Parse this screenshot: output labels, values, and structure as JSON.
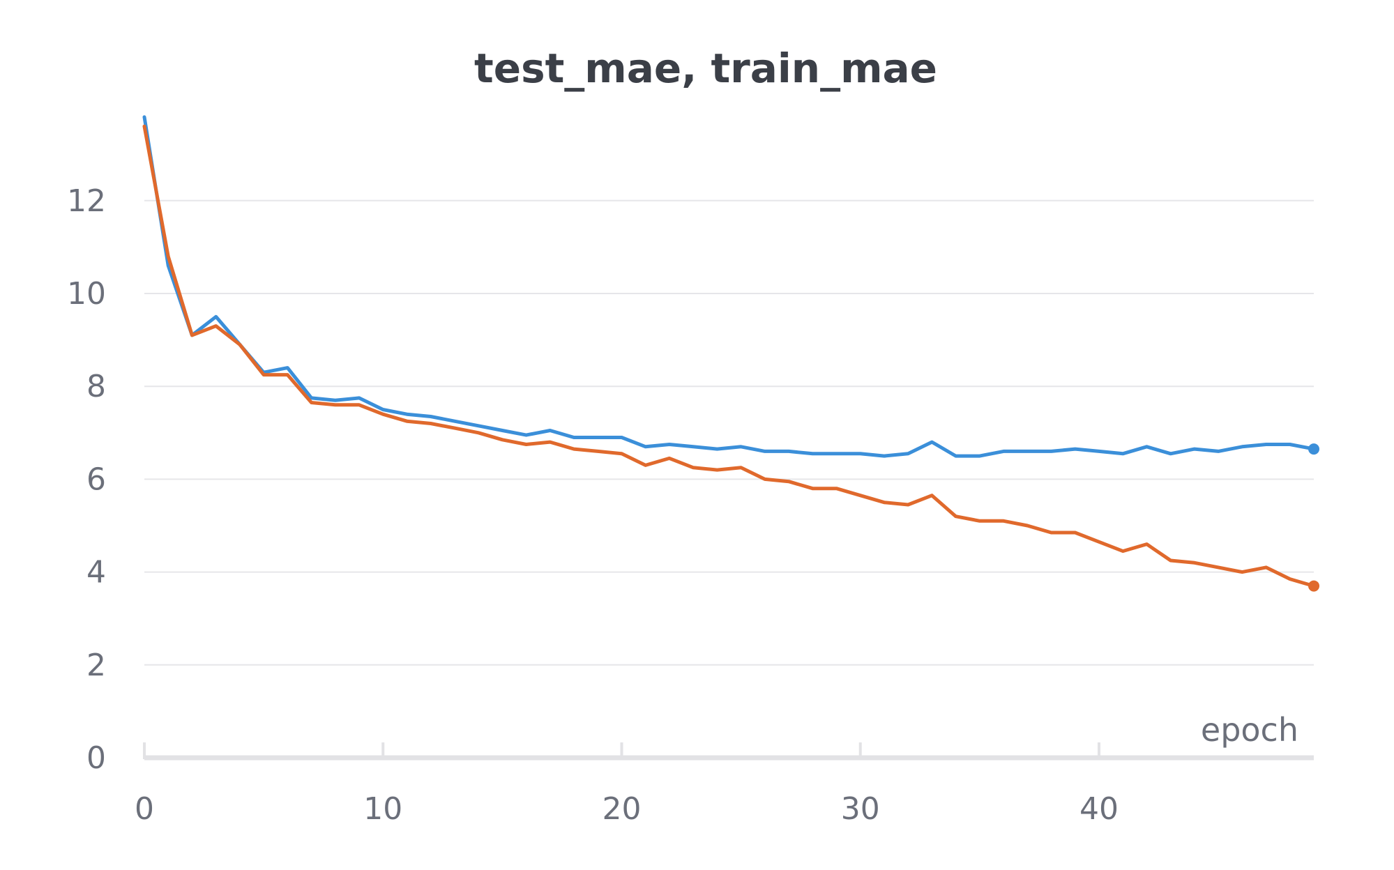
{
  "chart_data": {
    "type": "line",
    "title": "test_mae, train_mae",
    "xlabel": "epoch",
    "ylabel": "",
    "xlim": [
      0,
      49
    ],
    "ylim": [
      0,
      13.8
    ],
    "x_ticks": [
      0,
      10,
      20,
      30,
      40
    ],
    "y_ticks": [
      0,
      2,
      4,
      6,
      8,
      10,
      12
    ],
    "grid": true,
    "legend": "none",
    "x": [
      0,
      1,
      2,
      3,
      4,
      5,
      6,
      7,
      8,
      9,
      10,
      11,
      12,
      13,
      14,
      15,
      16,
      17,
      18,
      19,
      20,
      21,
      22,
      23,
      24,
      25,
      26,
      27,
      28,
      29,
      30,
      31,
      32,
      33,
      34,
      35,
      36,
      37,
      38,
      39,
      40,
      41,
      42,
      43,
      44,
      45,
      46,
      47,
      48,
      49
    ],
    "series": [
      {
        "color": "#3b8fd9",
        "values": [
          13.8,
          10.6,
          9.1,
          9.5,
          8.9,
          8.3,
          8.4,
          7.75,
          7.7,
          7.75,
          7.5,
          7.4,
          7.35,
          7.25,
          7.15,
          7.05,
          6.95,
          7.05,
          6.9,
          6.9,
          6.9,
          6.7,
          6.75,
          6.7,
          6.65,
          6.7,
          6.6,
          6.6,
          6.55,
          6.55,
          6.55,
          6.5,
          6.55,
          6.8,
          6.5,
          6.5,
          6.6,
          6.6,
          6.6,
          6.65,
          6.6,
          6.55,
          6.7,
          6.55,
          6.65,
          6.6,
          6.7,
          6.75,
          6.75,
          6.65
        ]
      },
      {
        "color": "#e0692c",
        "values": [
          13.6,
          10.8,
          9.1,
          9.3,
          8.9,
          8.25,
          8.25,
          7.65,
          7.6,
          7.6,
          7.4,
          7.25,
          7.2,
          7.1,
          7.0,
          6.85,
          6.75,
          6.8,
          6.65,
          6.6,
          6.55,
          6.3,
          6.45,
          6.25,
          6.2,
          6.25,
          6.0,
          5.95,
          5.8,
          5.8,
          5.65,
          5.5,
          5.45,
          5.65,
          5.2,
          5.1,
          5.1,
          5.0,
          4.85,
          4.85,
          4.65,
          4.45,
          4.6,
          4.25,
          4.2,
          4.1,
          4.0,
          4.1,
          3.85,
          3.7
        ]
      }
    ]
  }
}
